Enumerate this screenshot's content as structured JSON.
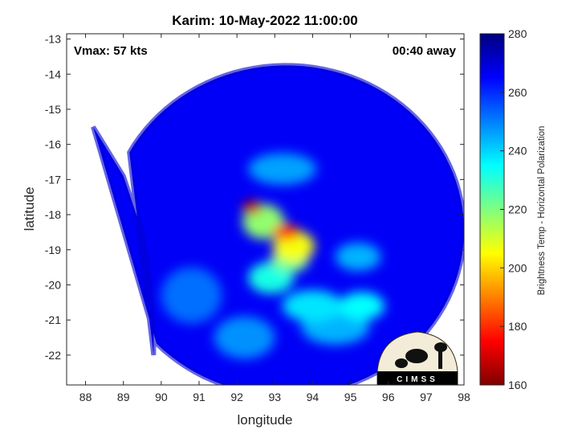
{
  "chart_data": {
    "type": "heatmap",
    "title": "Karim: 10-May-2022 11:00:00",
    "xlabel": "longitude",
    "ylabel": "latitude",
    "xlim": [
      87.5,
      98
    ],
    "ylim": [
      -22.85,
      -12.85
    ],
    "xticks": [
      88,
      89,
      90,
      91,
      92,
      93,
      94,
      95,
      96,
      97,
      98
    ],
    "yticks": [
      -13,
      -14,
      -15,
      -16,
      -17,
      -18,
      -19,
      -20,
      -21,
      -22
    ],
    "annotations": {
      "vmax": "Vmax: 57 kts",
      "time_offset": "00:40 away"
    },
    "colorbar": {
      "label": "Brightness Temp - Horizontal Polarization",
      "min": 160,
      "max": 280,
      "ticks": [
        160,
        180,
        200,
        220,
        240,
        260,
        280
      ],
      "colormap": "jet"
    },
    "swath": {
      "edge_points": [
        [
          88.2,
          -15.5
        ],
        [
          89.0,
          -16.9
        ],
        [
          89.5,
          -18.5
        ],
        [
          89.7,
          -20.0
        ],
        [
          89.8,
          -21.3
        ],
        [
          89.8,
          -22.0
        ]
      ],
      "center": [
        93.3,
        -18.45
      ],
      "radius_deg": 4.7,
      "background_tb": 266
    },
    "cells": [
      {
        "lon": 92.4,
        "lat": -17.8,
        "tb": 168,
        "rx": 0.25,
        "ry": 0.2
      },
      {
        "lon": 93.3,
        "lat": -18.5,
        "tb": 180,
        "rx": 0.35,
        "ry": 0.22
      },
      {
        "lon": 93.5,
        "lat": -18.9,
        "tb": 206,
        "rx": 0.55,
        "ry": 0.45
      },
      {
        "lon": 92.7,
        "lat": -18.2,
        "tb": 218,
        "rx": 0.55,
        "ry": 0.5
      },
      {
        "lon": 93.4,
        "lat": -19.3,
        "tb": 222,
        "rx": 0.5,
        "ry": 0.35
      },
      {
        "lon": 92.9,
        "lat": -19.8,
        "tb": 232,
        "rx": 0.6,
        "ry": 0.45
      },
      {
        "lon": 94.0,
        "lat": -20.6,
        "tb": 238,
        "rx": 0.8,
        "ry": 0.45
      },
      {
        "lon": 95.3,
        "lat": -20.6,
        "tb": 235,
        "rx": 0.6,
        "ry": 0.4
      },
      {
        "lon": 94.6,
        "lat": -21.2,
        "tb": 244,
        "rx": 0.9,
        "ry": 0.5
      },
      {
        "lon": 92.2,
        "lat": -21.5,
        "tb": 248,
        "rx": 0.8,
        "ry": 0.6
      },
      {
        "lon": 93.2,
        "lat": -16.7,
        "tb": 246,
        "rx": 0.9,
        "ry": 0.45
      },
      {
        "lon": 95.2,
        "lat": -19.2,
        "tb": 244,
        "rx": 0.6,
        "ry": 0.4
      },
      {
        "lon": 90.8,
        "lat": -20.3,
        "tb": 252,
        "rx": 0.8,
        "ry": 0.8
      }
    ],
    "logo_text": "CIMSS"
  }
}
